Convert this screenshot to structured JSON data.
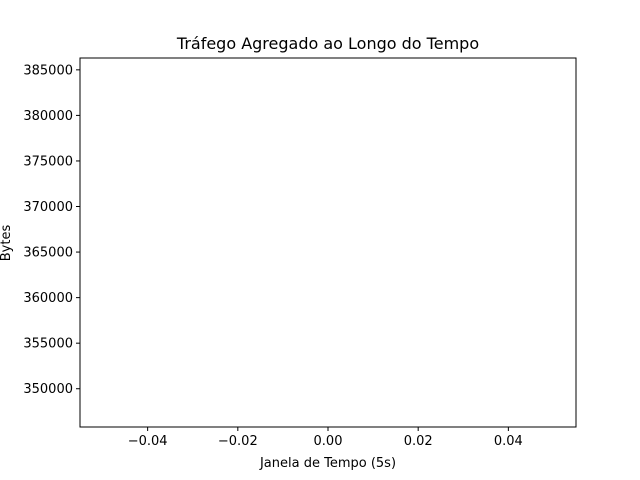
{
  "chart_data": {
    "type": "line",
    "title": "Tráfego Agregado ao Longo do Tempo",
    "xlabel": "Janela de Tempo (5s)",
    "ylabel": "Bytes",
    "xlim": [
      -0.055,
      0.055
    ],
    "ylim": [
      345800,
      386300
    ],
    "x_ticks": [
      -0.04,
      -0.02,
      0.0,
      0.02,
      0.04
    ],
    "x_tick_labels": [
      "−0.04",
      "−0.02",
      "0.00",
      "0.02",
      "0.04"
    ],
    "y_ticks": [
      350000,
      355000,
      360000,
      365000,
      370000,
      375000,
      380000,
      385000
    ],
    "y_tick_labels": [
      "350000",
      "355000",
      "360000",
      "365000",
      "370000",
      "375000",
      "380000",
      "385000"
    ],
    "grid": false,
    "series": [
      {
        "x": [],
        "y": []
      }
    ],
    "colors": {
      "axis": "#000000",
      "background": "#ffffff"
    }
  }
}
